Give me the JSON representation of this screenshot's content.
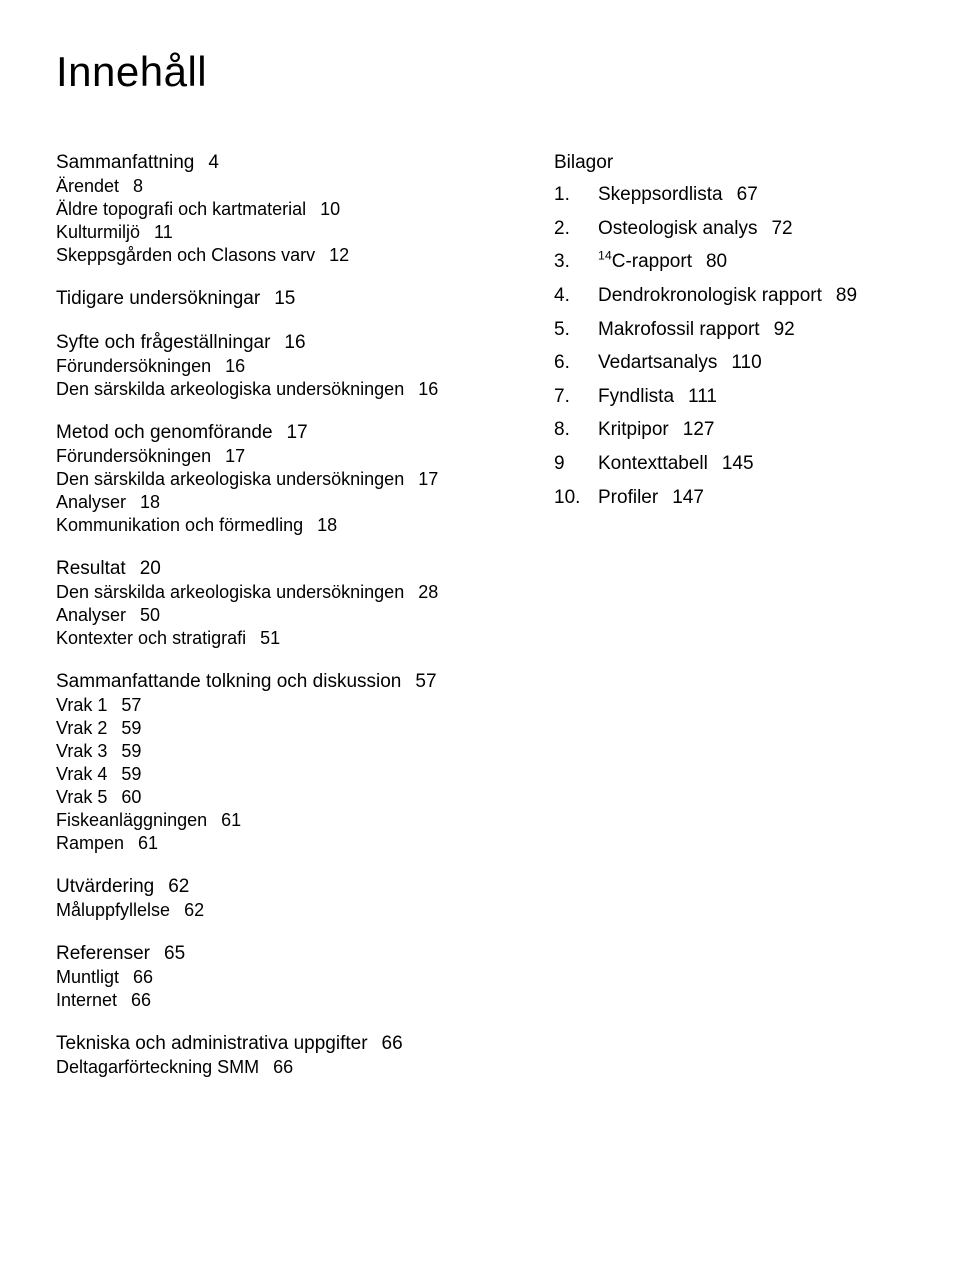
{
  "title": "Innehåll",
  "left": {
    "s1": {
      "head": "Sammanfattning",
      "head_pg": "4",
      "items": [
        {
          "t": "Ärendet",
          "pg": "8"
        },
        {
          "t": "Äldre topografi och kartmaterial",
          "pg": "10"
        },
        {
          "t": "Kulturmiljö",
          "pg": "11"
        },
        {
          "t": "Skeppsgården och Clasons varv",
          "pg": "12"
        }
      ]
    },
    "s2": {
      "head": "Tidigare undersökningar",
      "head_pg": "15"
    },
    "s3": {
      "head": "Syfte och frågeställningar",
      "head_pg": "16",
      "items": [
        {
          "t": "Förundersökningen",
          "pg": "16"
        },
        {
          "t": "Den särskilda arkeologiska undersökningen",
          "pg": "16"
        }
      ]
    },
    "s4": {
      "head": "Metod och genomförande",
      "head_pg": "17",
      "items": [
        {
          "t": "Förundersökningen",
          "pg": "17"
        },
        {
          "t": "Den särskilda arkeologiska undersökningen",
          "pg": "17"
        },
        {
          "t": "Analyser",
          "pg": "18"
        },
        {
          "t": "Kommunikation och förmedling",
          "pg": "18"
        }
      ]
    },
    "s5": {
      "head": "Resultat",
      "head_pg": "20",
      "items": [
        {
          "t": "Den särskilda arkeologiska undersökningen",
          "pg": "28"
        },
        {
          "t": "Analyser",
          "pg": "50"
        },
        {
          "t": "Kontexter och stratigrafi",
          "pg": "51"
        }
      ]
    },
    "s6": {
      "head": "Sammanfattande tolkning och diskussion",
      "head_pg": "57",
      "items": [
        {
          "t": "Vrak 1",
          "pg": "57"
        },
        {
          "t": "Vrak 2",
          "pg": "59"
        },
        {
          "t": "Vrak 3",
          "pg": "59"
        },
        {
          "t": "Vrak 4",
          "pg": "59"
        },
        {
          "t": "Vrak 5",
          "pg": "60"
        },
        {
          "t": "Fiskeanläggningen",
          "pg": "61"
        },
        {
          "t": "Rampen",
          "pg": "61"
        }
      ]
    },
    "s7": {
      "head": "Utvärdering",
      "head_pg": "62",
      "items": [
        {
          "t": "Måluppfyllelse",
          "pg": "62"
        }
      ]
    },
    "s8": {
      "head": "Referenser",
      "head_pg": "65",
      "items": [
        {
          "t": "Muntligt",
          "pg": "66"
        },
        {
          "t": "Internet",
          "pg": "66"
        }
      ]
    },
    "s9": {
      "head": "Tekniska och administrativa uppgifter",
      "head_pg": "66",
      "items": [
        {
          "t": "Deltagarförteckning SMM",
          "pg": "66"
        }
      ]
    }
  },
  "right": {
    "head": "Bilagor",
    "items": [
      {
        "n": "1.",
        "t": "Skeppsordlista",
        "pg": "67"
      },
      {
        "n": "2.",
        "t": "Osteologisk analys",
        "pg": "72"
      },
      {
        "n": "3.",
        "t_html": "<sup>14</sup>C-rapport",
        "pg": "80"
      },
      {
        "n": "4.",
        "t": "Dendrokronologisk rapport",
        "pg": "89"
      },
      {
        "n": "5.",
        "t": "Makrofossil rapport",
        "pg": "92"
      },
      {
        "n": "6.",
        "t": "Vedartsanalys",
        "pg": "110"
      },
      {
        "n": "7.",
        "t": "Fyndlista",
        "pg": "111"
      },
      {
        "n": "8.",
        "t": "Kritpipor",
        "pg": "127"
      },
      {
        "n": "9",
        "t": "Kontexttabell",
        "pg": "145"
      },
      {
        "n": "10.",
        "t": "Profiler",
        "pg": "147"
      }
    ]
  }
}
